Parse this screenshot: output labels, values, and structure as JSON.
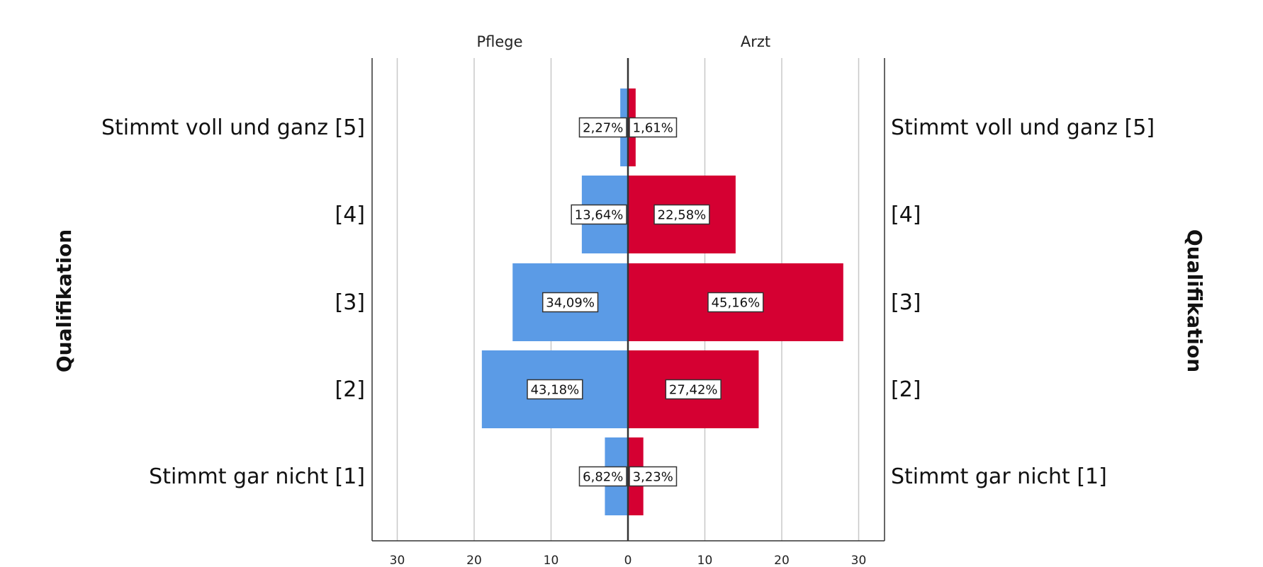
{
  "chart_data": {
    "type": "bar",
    "orientation": "horizontal-population-pyramid",
    "panels": [
      "Pflege",
      "Arzt"
    ],
    "categories": [
      "Stimmt voll und ganz [5]",
      "[4]",
      "[3]",
      "[2]",
      "Stimmt gar nicht [1]"
    ],
    "series": [
      {
        "name": "Pflege",
        "values": [
          1,
          6,
          15,
          19,
          3
        ],
        "labels": [
          "2,27%",
          "13,64%",
          "34,09%",
          "43,18%",
          "6,82%"
        ],
        "color": "#5b9be6"
      },
      {
        "name": "Arzt",
        "values": [
          1,
          14,
          28,
          17,
          2
        ],
        "labels": [
          "1,61%",
          "22,58%",
          "45,16%",
          "27,42%",
          "3,23%"
        ],
        "color": "#d50032"
      }
    ],
    "ylabel_left": "Qualifikation",
    "ylabel_right": "Qualifikation",
    "xlim": [
      0,
      30
    ],
    "xticks": [
      30,
      20,
      10,
      0,
      10,
      20,
      30
    ],
    "grid": true,
    "legend": "none"
  }
}
